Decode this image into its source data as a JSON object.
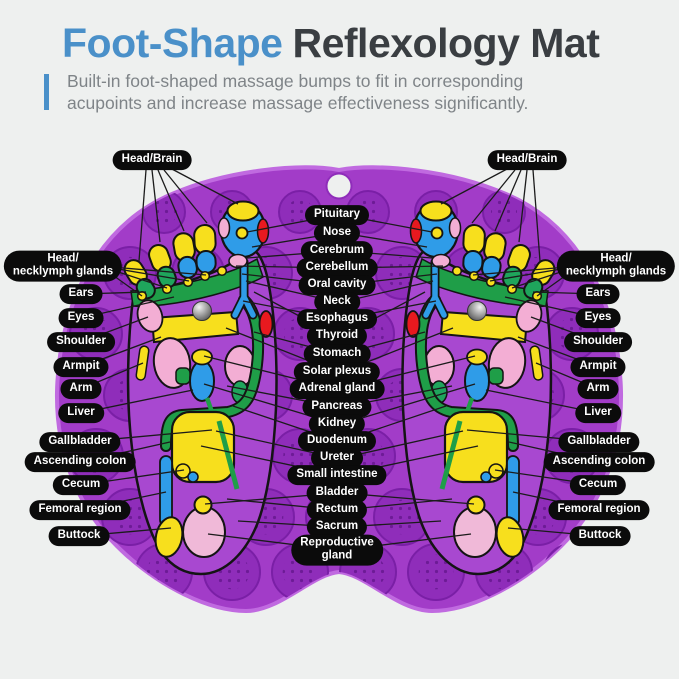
{
  "header": {
    "title_accent": "Foot-Shape",
    "title_rest": "Reflexology Mat",
    "subtitle_line1": "Built-in foot-shaped massage bumps to fit in corresponding",
    "subtitle_line2": "acupoints and increase massage effectiveness significantly."
  },
  "diagram": {
    "center_labels": [
      {
        "label": "Pituitary"
      },
      {
        "label": "Nose"
      },
      {
        "label": "Cerebrum"
      },
      {
        "label": "Cerebellum"
      },
      {
        "label": "Oral cavity"
      },
      {
        "label": "Neck"
      },
      {
        "label": "Esophagus"
      },
      {
        "label": "Thyroid"
      },
      {
        "label": "Stomach"
      },
      {
        "label": "Solar plexus"
      },
      {
        "label": "Adrenal gland"
      },
      {
        "label": "Pancreas"
      },
      {
        "label": "Kidney"
      },
      {
        "label": "Duodenum"
      },
      {
        "label": "Ureter"
      },
      {
        "label": "Small intestine"
      },
      {
        "label": "Bladder"
      },
      {
        "label": "Rectum"
      },
      {
        "label": "Sacrum"
      },
      {
        "label": "Reproductive",
        "label2": "gland"
      }
    ],
    "left_labels": [
      {
        "label": "Head/Brain"
      },
      {
        "label": "Head/",
        "label2": "necklymph glands"
      },
      {
        "label": "Ears"
      },
      {
        "label": "Eyes"
      },
      {
        "label": "Shoulder"
      },
      {
        "label": "Armpit"
      },
      {
        "label": "Arm"
      },
      {
        "label": "Liver"
      },
      {
        "label": "Gallbladder"
      },
      {
        "label": "Ascending colon"
      },
      {
        "label": "Cecum"
      },
      {
        "label": "Femoral region"
      },
      {
        "label": "Buttock"
      }
    ],
    "right_labels": [
      {
        "label": "Head/Brain"
      },
      {
        "label": "Head/",
        "label2": "necklymph glands"
      },
      {
        "label": "Ears"
      },
      {
        "label": "Eyes"
      },
      {
        "label": "Shoulder"
      },
      {
        "label": "Armpit"
      },
      {
        "label": "Arm"
      },
      {
        "label": "Liver"
      },
      {
        "label": "Gallbladder"
      },
      {
        "label": "Ascending colon"
      },
      {
        "label": "Cecum"
      },
      {
        "label": "Femoral region"
      },
      {
        "label": "Buttock"
      }
    ],
    "colors": {
      "background": "#eef0ef",
      "title_accent": "#4a90c9",
      "title_text": "#3a3e42",
      "subtitle_text": "#7f8488",
      "mat_purple": "#a23cc8",
      "mat_rim_light": "#c06ae0",
      "bump_purple": "#8f2dba",
      "bump_dots": "#6d1b96",
      "label_bg": "#0b0b0b",
      "label_text": "#ffffff",
      "foot_purple": "#a848d0",
      "zone_yellow": "#f7df1d",
      "zone_blue": "#2f9ce8",
      "zone_green": "#1f9e48",
      "zone_pink": "#f3aed4",
      "zone_red": "#e8191f",
      "metal_ball": "#9a9a9a",
      "outline": "#141414"
    }
  }
}
